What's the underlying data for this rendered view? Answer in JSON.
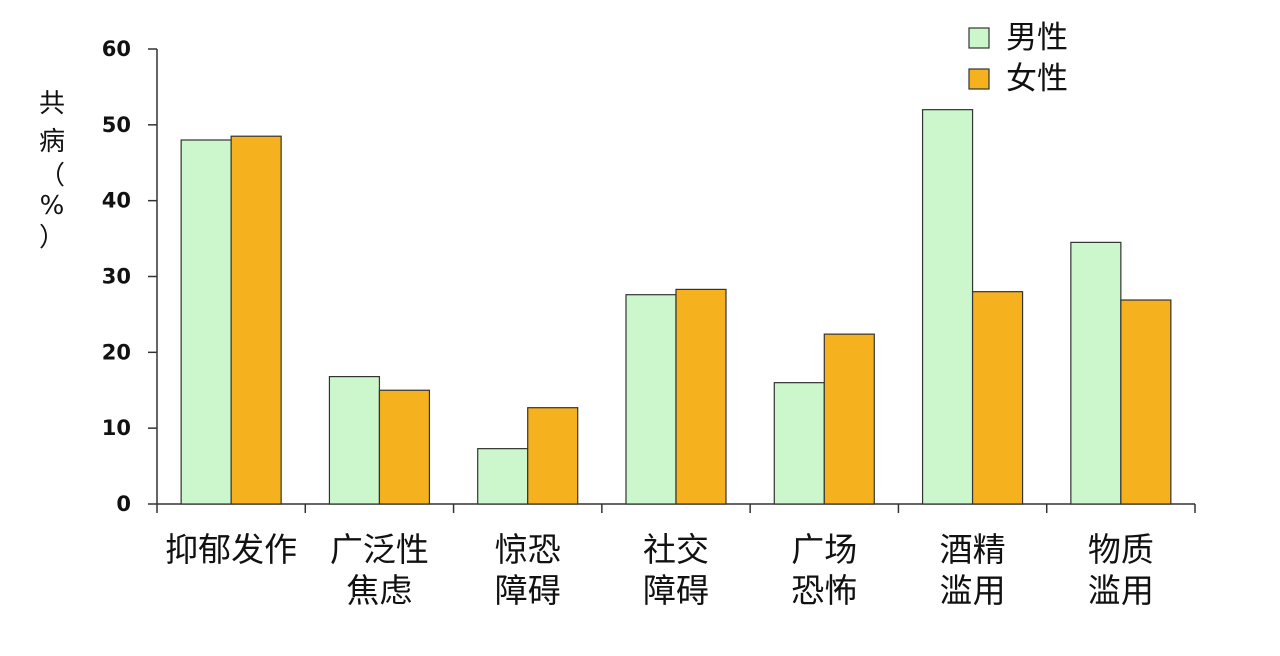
{
  "chart_data": {
    "type": "bar",
    "title": "",
    "xlabel": "",
    "ylabel": [
      "共",
      "病",
      "（",
      "%",
      "）"
    ],
    "categories": [
      [
        "抑郁发作"
      ],
      [
        "广泛性",
        "焦虑"
      ],
      [
        "惊恐",
        "障碍"
      ],
      [
        "社交",
        "障碍"
      ],
      [
        "广场",
        "恐怖"
      ],
      [
        "酒精",
        "滥用"
      ],
      [
        "物质",
        "滥用"
      ]
    ],
    "series": [
      {
        "name": "男性",
        "color": "#ccf7cc",
        "values": [
          48,
          16.8,
          7.3,
          27.6,
          16,
          52,
          34.5
        ]
      },
      {
        "name": "女性",
        "color": "#f5b21e",
        "values": [
          48.5,
          15,
          12.7,
          28.3,
          22.4,
          28,
          26.9
        ]
      }
    ],
    "ylim": [
      0,
      60
    ],
    "yticks": [
      0,
      10,
      20,
      30,
      40,
      50,
      60
    ],
    "grid": false,
    "legend_position": "top-right"
  }
}
